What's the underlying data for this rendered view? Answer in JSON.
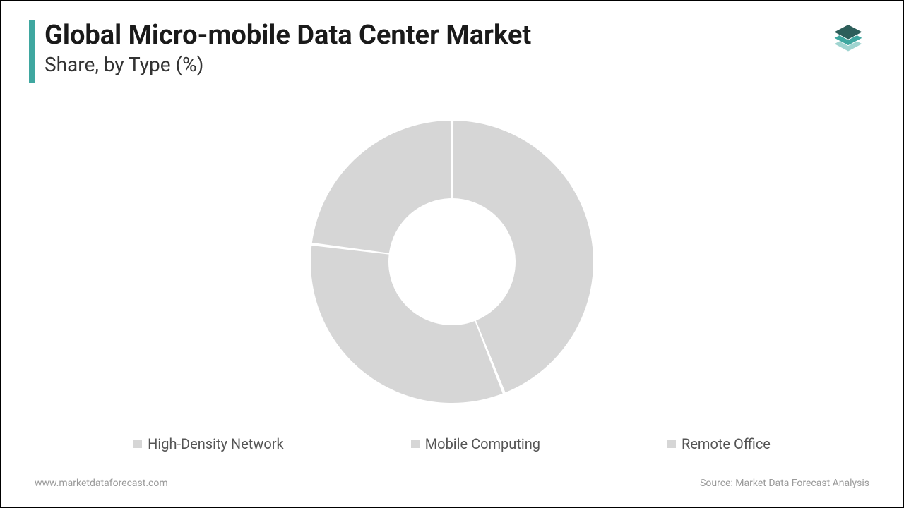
{
  "header": {
    "title": "Global Micro-mobile Data Center Market",
    "subtitle": "Share, by Type (%)",
    "accent_color": "#3fa7a0"
  },
  "logo": {
    "top_color": "#2d5e5a",
    "mid_color": "#3fa7a0",
    "bot_color": "#9fd4d0"
  },
  "chart": {
    "type": "donut",
    "outer_radius": 200,
    "inner_radius": 90,
    "background_color": "#ffffff",
    "slice_gap_deg": 1.2,
    "slices": [
      {
        "label": "High-Density Network",
        "value": 44,
        "color": "#d6d6d6"
      },
      {
        "label": "Mobile Computing",
        "value": 33,
        "color": "#d6d6d6"
      },
      {
        "label": "Remote Office",
        "value": 23,
        "color": "#d6d6d6"
      }
    ]
  },
  "legend": {
    "swatch_color": "#d6d6d6",
    "text_color": "#555555",
    "items": [
      "High-Density Network",
      "Mobile Computing",
      "Remote Office"
    ]
  },
  "footer": {
    "left": "www.marketdataforecast.com",
    "right": "Source: Market Data Forecast Analysis",
    "color": "#9a9a9a"
  }
}
